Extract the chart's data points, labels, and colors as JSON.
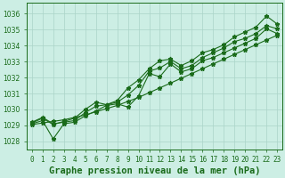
{
  "title": "Graphe pression niveau de la mer (hPa)",
  "x_values": [
    0,
    1,
    2,
    3,
    4,
    5,
    6,
    7,
    8,
    9,
    10,
    11,
    12,
    13,
    14,
    15,
    16,
    17,
    18,
    19,
    20,
    21,
    22,
    23
  ],
  "x_labels": [
    "0",
    "1",
    "2",
    "3",
    "4",
    "5",
    "6",
    "7",
    "8",
    "9",
    "10",
    "11",
    "12",
    "13",
    "14",
    "15",
    "16",
    "17",
    "18",
    "19",
    "20",
    "21",
    "22",
    "23"
  ],
  "y_line1": [
    1029.2,
    1029.5,
    1029.1,
    1029.2,
    1029.3,
    1029.8,
    1030.2,
    1030.3,
    1030.45,
    1030.9,
    1031.5,
    1032.4,
    1032.6,
    1033.0,
    1032.55,
    1032.75,
    1033.25,
    1033.55,
    1033.85,
    1034.25,
    1034.45,
    1034.75,
    1035.25,
    1035.05
  ],
  "y_line2": [
    1029.1,
    1029.3,
    1028.15,
    1029.1,
    1029.2,
    1029.6,
    1029.9,
    1030.25,
    1030.35,
    1030.15,
    1030.85,
    1032.25,
    1032.05,
    1032.85,
    1032.35,
    1032.55,
    1033.05,
    1033.25,
    1033.55,
    1033.85,
    1034.15,
    1034.45,
    1035.05,
    1034.75
  ],
  "y_line3": [
    1029.15,
    1029.45,
    1029.05,
    1029.25,
    1029.45,
    1030.0,
    1030.45,
    1030.3,
    1030.55,
    1031.35,
    1031.85,
    1032.55,
    1033.05,
    1033.15,
    1032.75,
    1033.05,
    1033.55,
    1033.75,
    1034.05,
    1034.55,
    1034.85,
    1035.15,
    1035.85,
    1035.35
  ],
  "y_trend": [
    1029.05,
    1029.15,
    1029.25,
    1029.35,
    1029.5,
    1029.65,
    1029.85,
    1030.05,
    1030.25,
    1030.5,
    1030.75,
    1031.05,
    1031.35,
    1031.65,
    1031.95,
    1032.25,
    1032.55,
    1032.85,
    1033.15,
    1033.45,
    1033.75,
    1034.05,
    1034.35,
    1034.65
  ],
  "ylim": [
    1027.5,
    1036.7
  ],
  "yticks": [
    1028,
    1029,
    1030,
    1031,
    1032,
    1033,
    1034,
    1035,
    1036
  ],
  "line_color": "#1a6b1a",
  "bg_color": "#cceee4",
  "grid_color": "#aad4c8",
  "title_fontsize": 7.5,
  "tick_fontsize": 5.5
}
